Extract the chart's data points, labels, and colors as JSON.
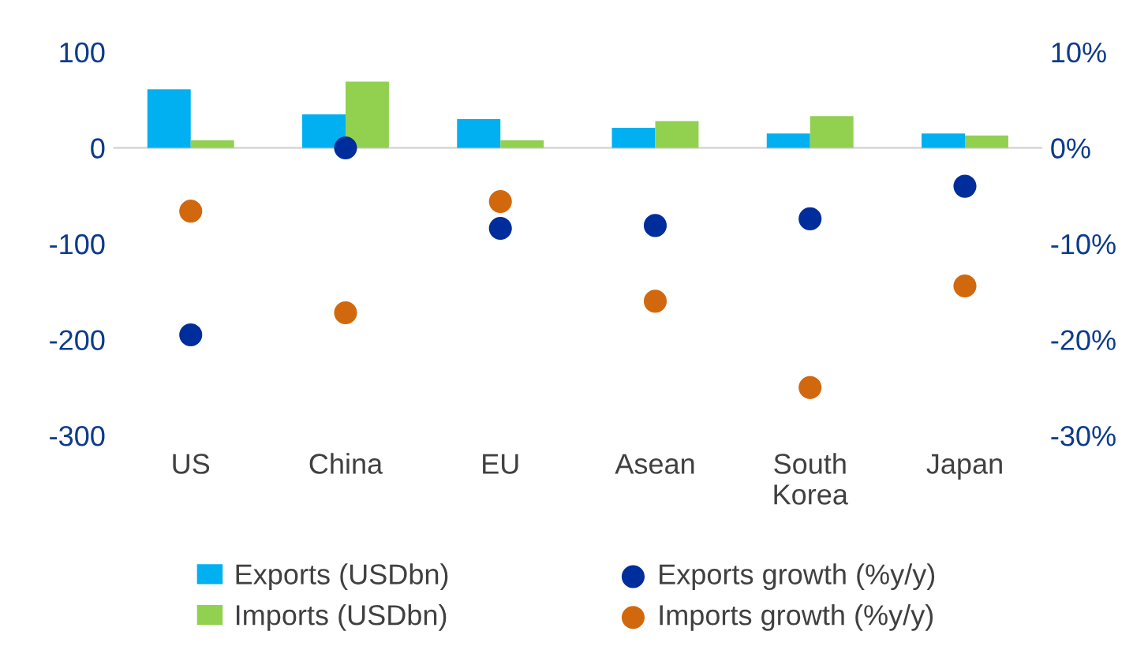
{
  "chart_data": {
    "type": "bar",
    "categories": [
      "US",
      "China",
      "EU",
      "Asean",
      "South Korea",
      "Japan"
    ],
    "series": [
      {
        "name": "Exports (USDbn)",
        "color": "#00b0f0",
        "values": [
          61,
          35,
          30,
          21,
          15,
          15
        ]
      },
      {
        "name": "Imports (USDbn)",
        "color": "#92d050",
        "values": [
          8,
          69,
          8,
          28,
          33,
          13
        ]
      },
      {
        "name": "Exports growth (%y/y)",
        "type": "scatter",
        "axis": "y2",
        "color": "#002d9c",
        "values": [
          -19.5,
          0,
          -8.4,
          -8.1,
          -7.4,
          -4.0
        ]
      },
      {
        "name": "Imports growth (%y/y)",
        "type": "scatter",
        "axis": "y2",
        "color": "#d2680e",
        "values": [
          -6.6,
          -17.2,
          -5.6,
          -16.0,
          -25.0,
          -14.4
        ]
      }
    ],
    "ylim": [
      -300,
      100
    ],
    "yticks": [
      -300,
      -200,
      -100,
      0,
      100
    ],
    "y2lim": [
      -30,
      10
    ],
    "y2ticks": [
      {
        "value": -30,
        "label": "-30%"
      },
      {
        "value": -20,
        "label": "-20%"
      },
      {
        "value": -10,
        "label": "-10%"
      },
      {
        "value": 0,
        "label": "0%"
      },
      {
        "value": 10,
        "label": "10%"
      }
    ],
    "ref_lines": [
      {
        "axis": "y",
        "value": 0,
        "color": "#d9d9d9"
      }
    ],
    "marker": "circle",
    "grid": false,
    "legend": "bottom"
  }
}
